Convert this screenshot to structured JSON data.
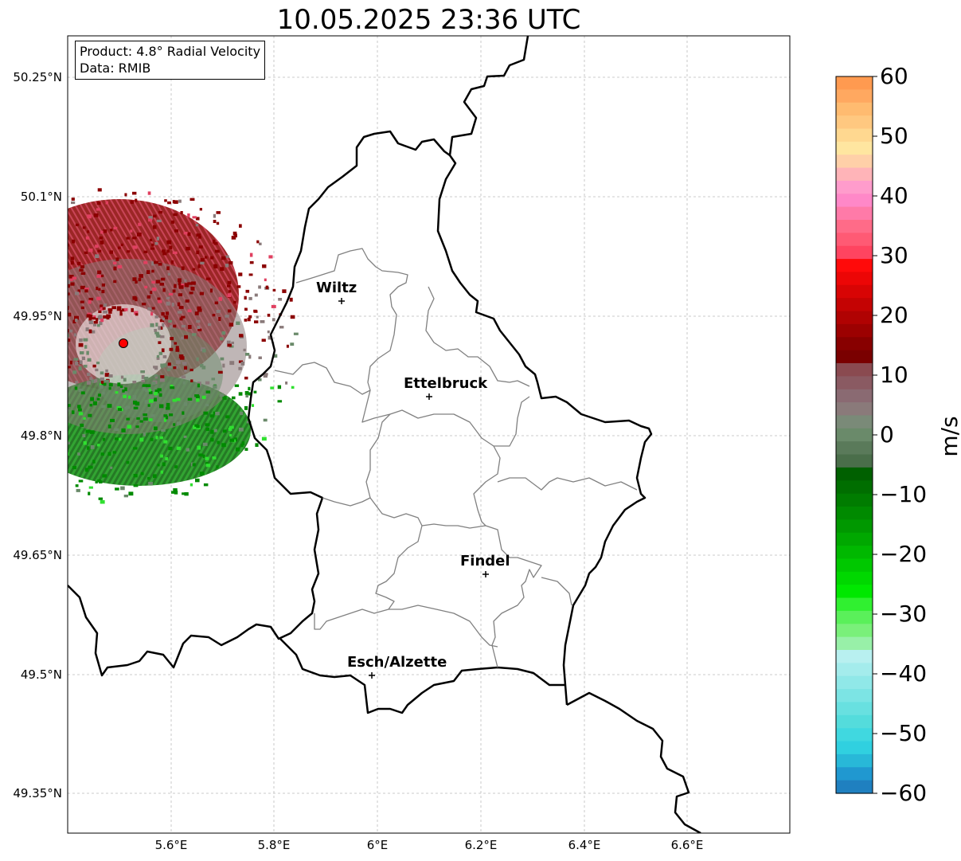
{
  "title": "10.05.2025 23:36 UTC",
  "info": {
    "product": "Product: 4.8° Radial Velocity",
    "source": "Data: RMIB"
  },
  "axes": {
    "lat_ticks": [
      "50.25°N",
      "50.1°N",
      "49.95°N",
      "49.8°N",
      "49.65°N",
      "49.5°N",
      "49.35°N"
    ],
    "lon_ticks": [
      "5.6°E",
      "5.8°E",
      "6°E",
      "6.2°E",
      "6.4°E",
      "6.6°E"
    ]
  },
  "cities": [
    {
      "name": "Wiltz"
    },
    {
      "name": "Ettelbruck"
    },
    {
      "name": "Findel"
    },
    {
      "name": "Esch/Alzette"
    }
  ],
  "colorbar": {
    "unit": "m/s",
    "ticks": [
      "60",
      "50",
      "40",
      "30",
      "20",
      "10",
      "0",
      "−10",
      "−20",
      "−30",
      "−40",
      "−50",
      "−60"
    ],
    "range": [
      -60,
      60
    ]
  },
  "colors": {
    "approaching": "#008000",
    "receding": "#8b0000",
    "near_zero": "#8a7a7a",
    "radar_site": "#ff0000"
  }
}
